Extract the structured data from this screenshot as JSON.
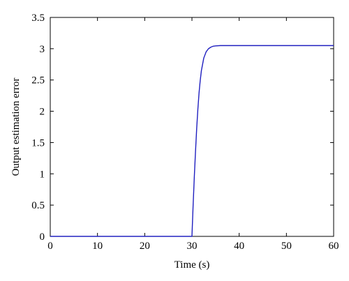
{
  "chart_data": {
    "type": "line",
    "title": "",
    "xlabel": "Time (s)",
    "ylabel": "Output estimation error",
    "xlim": [
      0,
      60
    ],
    "ylim": [
      0,
      3.5
    ],
    "xticks": [
      0,
      10,
      20,
      30,
      40,
      50,
      60
    ],
    "yticks": [
      0,
      0.5,
      1,
      1.5,
      2,
      2.5,
      3,
      3.5
    ],
    "xtick_labels": [
      "0",
      "10",
      "20",
      "30",
      "40",
      "50",
      "60"
    ],
    "ytick_labels": [
      "0",
      "0.5",
      "1",
      "1.5",
      "2",
      "2.5",
      "3",
      "3.5"
    ],
    "grid": false,
    "legend": "none",
    "series": [
      {
        "color": "#2020c0",
        "x": [
          0,
          30,
          30.25,
          30.5,
          30.75,
          31,
          31.25,
          31.5,
          31.75,
          32,
          32.5,
          33,
          33.5,
          34,
          34.5,
          35,
          36,
          37,
          38,
          40,
          45,
          50,
          55,
          60
        ],
        "y": [
          0,
          0,
          0.5,
          0.95,
          1.35,
          1.72,
          2.03,
          2.29,
          2.49,
          2.65,
          2.85,
          2.95,
          3.0,
          3.025,
          3.04,
          3.045,
          3.05,
          3.05,
          3.05,
          3.05,
          3.05,
          3.05,
          3.05,
          3.05
        ]
      }
    ]
  }
}
